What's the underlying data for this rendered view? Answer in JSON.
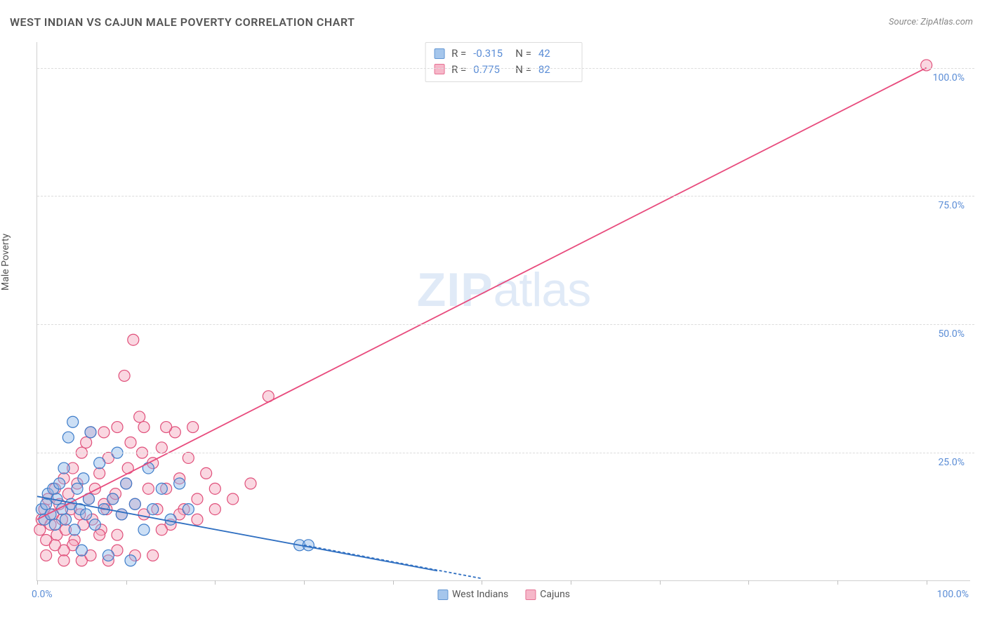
{
  "title": "WEST INDIAN VS CAJUN MALE POVERTY CORRELATION CHART",
  "source": "Source: ZipAtlas.com",
  "ylabel": "Male Poverty",
  "watermark_zip": "ZIP",
  "watermark_atlas": "atlas",
  "chart": {
    "type": "scatter",
    "xlim": [
      0,
      105
    ],
    "ylim": [
      0,
      105
    ],
    "xticks": [
      0,
      10,
      20,
      30,
      40,
      50,
      60,
      70,
      80,
      90,
      100
    ],
    "grid_y": [
      25,
      50,
      75,
      100
    ],
    "ytick_labels": {
      "25": "25.0%",
      "50": "50.0%",
      "75": "75.0%",
      "100": "100.0%"
    },
    "xaxis_label_left": "0.0%",
    "xaxis_label_right": "100.0%",
    "grid_color": "#dcdcdc",
    "axis_color": "#d0d0d0",
    "tick_label_color": "#5b8dd6",
    "background_color": "#ffffff",
    "marker_radius": 8,
    "marker_stroke_width": 1.2,
    "line_width": 1.8,
    "dash_pattern": "4 3"
  },
  "series": {
    "west_indians": {
      "label": "West Indians",
      "fill_color": "#8fb9e8",
      "fill_opacity": 0.45,
      "stroke_color": "#3d7cc9",
      "line_color": "#2f6fc1",
      "R": "-0.315",
      "N": "42",
      "trend": {
        "x1": 0,
        "y1": 16.5,
        "x2": 45,
        "y2": 2
      },
      "trend_dash": {
        "x1": 30,
        "y1": 7,
        "x2": 50,
        "y2": 0.5
      },
      "points": [
        [
          0.5,
          14
        ],
        [
          0.8,
          12
        ],
        [
          1.0,
          15
        ],
        [
          1.2,
          17
        ],
        [
          1.5,
          13
        ],
        [
          1.8,
          18
        ],
        [
          2.0,
          11
        ],
        [
          2.2,
          16
        ],
        [
          2.5,
          19
        ],
        [
          2.8,
          14
        ],
        [
          3.0,
          22
        ],
        [
          3.2,
          12
        ],
        [
          3.5,
          28
        ],
        [
          3.8,
          15
        ],
        [
          4.0,
          31
        ],
        [
          4.2,
          10
        ],
        [
          4.5,
          18
        ],
        [
          4.8,
          14
        ],
        [
          5.0,
          6
        ],
        [
          5.2,
          20
        ],
        [
          5.5,
          13
        ],
        [
          5.8,
          16
        ],
        [
          6.0,
          29
        ],
        [
          6.5,
          11
        ],
        [
          7.0,
          23
        ],
        [
          7.5,
          14
        ],
        [
          8.0,
          5
        ],
        [
          8.5,
          16
        ],
        [
          9.0,
          25
        ],
        [
          9.5,
          13
        ],
        [
          10.0,
          19
        ],
        [
          10.5,
          4
        ],
        [
          11.0,
          15
        ],
        [
          12.0,
          10
        ],
        [
          12.5,
          22
        ],
        [
          13.0,
          14
        ],
        [
          14.0,
          18
        ],
        [
          15.0,
          12
        ],
        [
          16.0,
          19
        ],
        [
          17.0,
          14
        ],
        [
          29.5,
          7
        ],
        [
          30.5,
          7
        ]
      ]
    },
    "cajuns": {
      "label": "Cajuns",
      "fill_color": "#f4a6bc",
      "fill_opacity": 0.45,
      "stroke_color": "#e04f7a",
      "line_color": "#e84b7d",
      "R": "0.775",
      "N": "82",
      "trend": {
        "x1": 0,
        "y1": 12,
        "x2": 100,
        "y2": 100
      },
      "points": [
        [
          0.3,
          10
        ],
        [
          0.5,
          12
        ],
        [
          0.8,
          14
        ],
        [
          1.0,
          8
        ],
        [
          1.2,
          16
        ],
        [
          1.5,
          11
        ],
        [
          1.8,
          13
        ],
        [
          2.0,
          18
        ],
        [
          2.2,
          9
        ],
        [
          2.5,
          15
        ],
        [
          2.8,
          12
        ],
        [
          3.0,
          20
        ],
        [
          3.2,
          10
        ],
        [
          3.5,
          17
        ],
        [
          3.8,
          14
        ],
        [
          4.0,
          22
        ],
        [
          4.2,
          8
        ],
        [
          4.5,
          19
        ],
        [
          4.8,
          13
        ],
        [
          5.0,
          25
        ],
        [
          5.2,
          11
        ],
        [
          5.5,
          27
        ],
        [
          5.8,
          16
        ],
        [
          6.0,
          29
        ],
        [
          6.2,
          12
        ],
        [
          6.5,
          18
        ],
        [
          7.0,
          21
        ],
        [
          7.2,
          10
        ],
        [
          7.5,
          29
        ],
        [
          7.8,
          14
        ],
        [
          8.0,
          24
        ],
        [
          8.5,
          16
        ],
        [
          9.0,
          30
        ],
        [
          9.5,
          13
        ],
        [
          9.8,
          40
        ],
        [
          10.0,
          19
        ],
        [
          10.5,
          27
        ],
        [
          10.8,
          47
        ],
        [
          11.0,
          15
        ],
        [
          11.5,
          32
        ],
        [
          12.0,
          30
        ],
        [
          12.5,
          18
        ],
        [
          13.0,
          23
        ],
        [
          13.5,
          14
        ],
        [
          14.0,
          26
        ],
        [
          14.5,
          18
        ],
        [
          15.0,
          11
        ],
        [
          15.5,
          29
        ],
        [
          16.0,
          20
        ],
        [
          16.5,
          14
        ],
        [
          17.0,
          24
        ],
        [
          18.0,
          16
        ],
        [
          19.0,
          21
        ],
        [
          20.0,
          14
        ],
        [
          5.0,
          4
        ],
        [
          6.0,
          5
        ],
        [
          8.0,
          4
        ],
        [
          9.0,
          6
        ],
        [
          11.0,
          5
        ],
        [
          13.0,
          5
        ],
        [
          4.0,
          7
        ],
        [
          3.0,
          6
        ],
        [
          2.0,
          7
        ],
        [
          7.0,
          9
        ],
        [
          9.0,
          9
        ],
        [
          12.0,
          13
        ],
        [
          14.0,
          10
        ],
        [
          16.0,
          13
        ],
        [
          1.0,
          5
        ],
        [
          3.0,
          4
        ],
        [
          18.0,
          12
        ],
        [
          20.0,
          18
        ],
        [
          22.0,
          16
        ],
        [
          24.0,
          19
        ],
        [
          7.5,
          15
        ],
        [
          8.8,
          17
        ],
        [
          10.2,
          22
        ],
        [
          11.8,
          25
        ],
        [
          26.0,
          36
        ],
        [
          17.5,
          30
        ],
        [
          14.5,
          30
        ],
        [
          100.0,
          100.5
        ]
      ]
    }
  },
  "legend_top": {
    "row1": {
      "swatch": "west_indians",
      "r_label": "R =",
      "r_val": "-0.315",
      "n_label": "N =",
      "n_val": "42"
    },
    "row2": {
      "swatch": "cajuns",
      "r_label": "R =",
      "r_val": "0.775",
      "n_label": "N =",
      "n_val": "82"
    }
  }
}
